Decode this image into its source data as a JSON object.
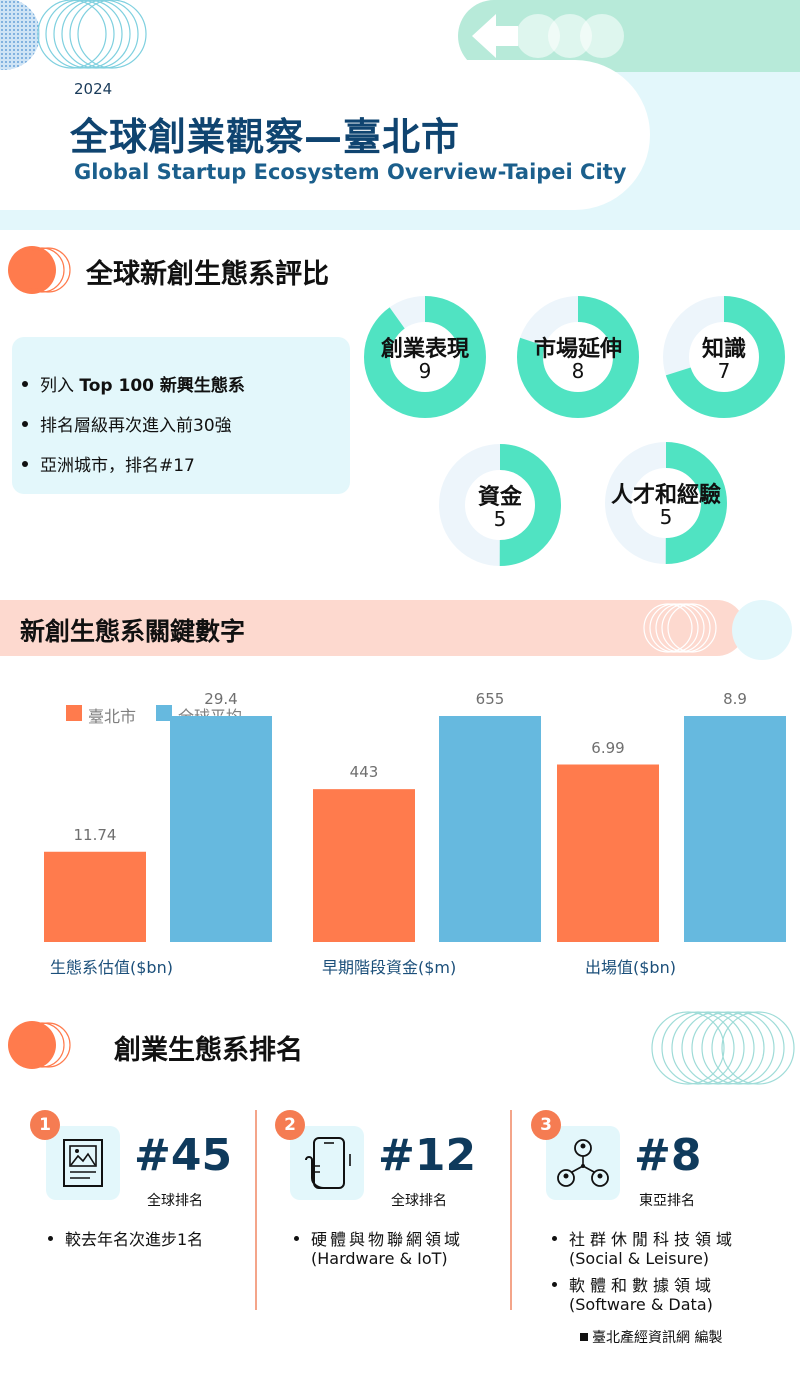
{
  "header": {
    "year": "2024",
    "title_zh": "全球創業觀察—臺北市",
    "title_en": "Global  Startup Ecosystem Overview-Taipei City"
  },
  "rating": {
    "title": "全球新創生態系評比",
    "bullets": [
      {
        "pre": "列入 ",
        "bold": "Top 100 新興生態系",
        "post": ""
      },
      {
        "pre": "排名層級再次進入前30強",
        "bold": "",
        "post": ""
      },
      {
        "pre": "亞洲城市，排名#17",
        "bold": "",
        "post": ""
      }
    ],
    "scores": [
      {
        "label": "創業表現",
        "value": "9",
        "fraction": 0.9
      },
      {
        "label": "市場延伸",
        "value": "8",
        "fraction": 0.8
      },
      {
        "label": "知識",
        "value": "7",
        "fraction": 0.7
      },
      {
        "label": "資金",
        "value": "5",
        "fraction": 0.5
      },
      {
        "label": "人才和經驗",
        "value": "5",
        "fraction": 0.5
      }
    ]
  },
  "keynums": {
    "title": "新創生態系關鍵數字"
  },
  "chart_data": {
    "type": "bar",
    "legend": [
      "臺北市",
      "全球平均"
    ],
    "colors": {
      "taipei": "#ff7b4d",
      "global": "#66b9df"
    },
    "groups": [
      {
        "category": "生態系估值($bn)",
        "taipei": 11.74,
        "global": 29.4,
        "taipei_label": "11.74",
        "global_label": "29.4"
      },
      {
        "category": "早期階段資金($m)",
        "taipei": 443,
        "global": 655,
        "taipei_label": "443",
        "global_label": "655"
      },
      {
        "category": "出場值($bn)",
        "taipei": 6.99,
        "global": 8.9,
        "taipei_label": "6.99",
        "global_label": "8.9"
      }
    ]
  },
  "ranking": {
    "title": "創業生態系排名",
    "items": [
      {
        "badge": "1",
        "icon": "picture-frame-icon",
        "rank": "#45",
        "sub": "全球排名",
        "bullets": [
          {
            "zh": "較去年名次進步1名",
            "en": ""
          }
        ]
      },
      {
        "badge": "2",
        "icon": "smartphone-hand-icon",
        "rank": "#12",
        "sub": "全球排名",
        "bullets": [
          {
            "zh": "硬體與物聯網領域",
            "en": "(Hardware & IoT)"
          }
        ]
      },
      {
        "badge": "3",
        "icon": "network-users-icon",
        "rank": "#8",
        "sub": "東亞排名",
        "bullets": [
          {
            "zh": "社群休閒科技領域",
            "en": "(Social & Leisure)"
          },
          {
            "zh": "軟體和數據領域",
            "en": "(Software & Data)"
          }
        ]
      }
    ],
    "footer": "臺北產經資訊網 編製"
  }
}
